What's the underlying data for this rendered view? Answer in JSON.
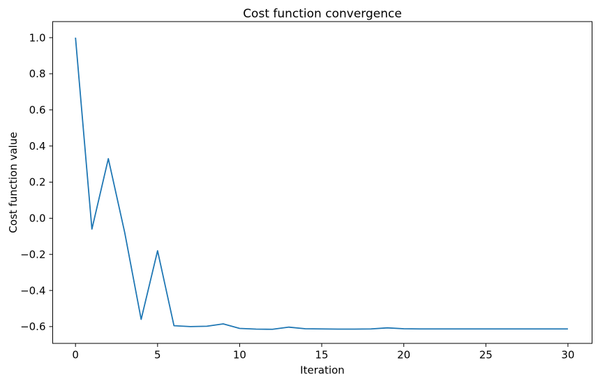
{
  "chart_data": {
    "type": "line",
    "title": "Cost function convergence",
    "xlabel": "Iteration",
    "ylabel": "Cost function value",
    "x": [
      0,
      1,
      2,
      3,
      4,
      5,
      6,
      7,
      8,
      9,
      10,
      11,
      12,
      13,
      14,
      15,
      16,
      17,
      18,
      19,
      20,
      21,
      22,
      23,
      24,
      25,
      26,
      27,
      28,
      29,
      30
    ],
    "y": [
      1.0,
      -0.06,
      0.33,
      -0.08,
      -0.56,
      -0.18,
      -0.595,
      -0.6,
      -0.598,
      -0.585,
      -0.61,
      -0.614,
      -0.615,
      -0.603,
      -0.612,
      -0.613,
      -0.614,
      -0.614,
      -0.613,
      -0.607,
      -0.612,
      -0.613,
      -0.613,
      -0.613,
      -0.613,
      -0.613,
      -0.613,
      -0.613,
      -0.613,
      -0.613,
      -0.613
    ],
    "xticks": [
      {
        "v": 0,
        "label": "0"
      },
      {
        "v": 5,
        "label": "5"
      },
      {
        "v": 10,
        "label": "10"
      },
      {
        "v": 15,
        "label": "15"
      },
      {
        "v": 20,
        "label": "20"
      },
      {
        "v": 25,
        "label": "25"
      },
      {
        "v": 30,
        "label": "30"
      }
    ],
    "yticks": [
      {
        "v": 1.0,
        "label": "1.0"
      },
      {
        "v": 0.8,
        "label": "0.8"
      },
      {
        "v": 0.6,
        "label": "0.6"
      },
      {
        "v": 0.4,
        "label": "0.4"
      },
      {
        "v": 0.2,
        "label": "0.2"
      },
      {
        "v": 0.0,
        "label": "0.0"
      },
      {
        "v": -0.2,
        "label": "−0.2"
      },
      {
        "v": -0.4,
        "label": "−0.4"
      },
      {
        "v": -0.6,
        "label": "−0.6"
      }
    ],
    "xlim": [
      -1.39,
      31.47
    ],
    "ylim": [
      -0.693,
      1.089
    ],
    "line_color": "#1f77b4",
    "background_color": "#ffffff",
    "grid": false,
    "legend": "none"
  }
}
